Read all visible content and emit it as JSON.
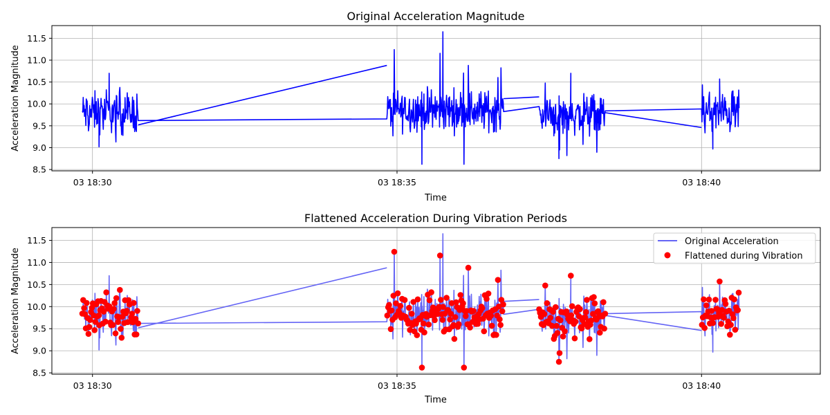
{
  "chart_data": [
    {
      "type": "line",
      "title": "Original Acceleration Magnitude",
      "xlabel": "Time",
      "ylabel": "Acceleration Magnitude",
      "x_ticks": [
        "03 18:30",
        "03 18:35",
        "03 18:40"
      ],
      "y_ticks": [
        "8.5",
        "9.0",
        "9.5",
        "10.0",
        "10.5",
        "11.0",
        "11.5"
      ],
      "x_range_minutes": [
        "18:29:20",
        "18:41:57"
      ],
      "ylim": [
        8.47,
        11.79
      ],
      "grid": true,
      "series": [
        {
          "color": "#0000ff",
          "vibration_bursts": [
            {
              "start": "18:29:50",
              "end": "18:30:45",
              "min": 9.02,
              "max": 10.7,
              "center": 9.8
            },
            {
              "start": "18:34:50",
              "end": "18:36:45",
              "min": 8.62,
              "max": 11.65,
              "center": 9.85
            },
            {
              "start": "18:37:20",
              "end": "18:38:25",
              "min": 8.75,
              "max": 10.7,
              "center": 9.75
            },
            {
              "start": "18:40:00",
              "end": "18:40:37",
              "min": 8.97,
              "max": 10.57,
              "center": 9.8
            }
          ],
          "connectors": [
            {
              "x": [
                "18:30:45",
                "18:34:50"
              ],
              "y": [
                9.52,
                10.88
              ]
            },
            {
              "x": [
                "18:36:45",
                "18:37:20"
              ],
              "y": [
                10.12,
                10.16
              ]
            },
            {
              "x": [
                "18:38:25",
                "18:40:00"
              ],
              "y": [
                9.8,
                9.46
              ]
            }
          ]
        }
      ]
    },
    {
      "type": "line",
      "title": "Flattened Acceleration During Vibration Periods",
      "xlabel": "Time",
      "ylabel": "Acceleration Magnitude",
      "x_ticks": [
        "03 18:30",
        "03 18:35",
        "03 18:40"
      ],
      "y_ticks": [
        "8.5",
        "9.0",
        "9.5",
        "10.0",
        "10.5",
        "11.0",
        "11.5"
      ],
      "ylim": [
        8.47,
        11.79
      ],
      "grid": true,
      "legend_position": "top-right",
      "series": [
        {
          "name": "Original Acceleration",
          "color": "#6464f5",
          "style": "line"
        },
        {
          "name": "Flattened during Vibration",
          "color": "#ff0000",
          "style": "markers"
        }
      ]
    }
  ]
}
